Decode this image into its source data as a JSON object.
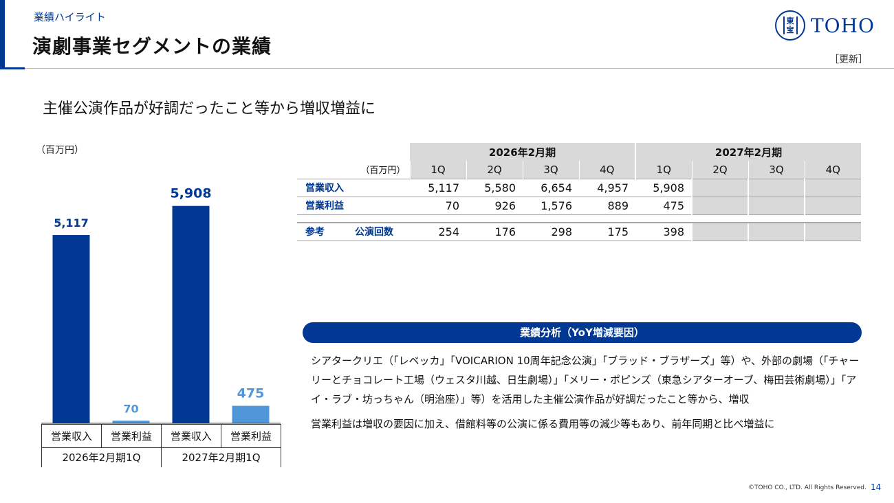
{
  "header": {
    "section_label": "業績ハイライト",
    "title": "演劇事業セグメントの業績",
    "logo_text": "TOHO",
    "logo_seal": [
      "東",
      "宝"
    ],
    "update_tag": "［更新］"
  },
  "headline": "主催公演作品が好調だったこと等から増収増益に",
  "chart_data": {
    "type": "bar",
    "unit_label": "（百万円）",
    "categories": [
      "営業収入",
      "営業利益",
      "営業収入",
      "営業利益"
    ],
    "groups": [
      "2026年2月期1Q",
      "2027年2月期1Q"
    ],
    "values": [
      5117,
      70,
      5908,
      475
    ],
    "value_labels": [
      "5,117",
      "70",
      "5,908",
      "475"
    ],
    "colors": [
      "#003893",
      "#4f97d9",
      "#003893",
      "#4f97d9"
    ],
    "ylim": [
      0,
      6500
    ]
  },
  "table": {
    "unit": "（百万円）",
    "years": [
      "2026年2月期",
      "2027年2月期"
    ],
    "quarters": [
      "1Q",
      "2Q",
      "3Q",
      "4Q",
      "1Q",
      "2Q",
      "3Q",
      "4Q"
    ],
    "rows": [
      {
        "label": "営業収入",
        "values": [
          "5,117",
          "5,580",
          "6,654",
          "4,957",
          "5,908",
          "",
          "",
          ""
        ]
      },
      {
        "label": "営業利益",
        "values": [
          "70",
          "926",
          "1,576",
          "889",
          "475",
          "",
          "",
          ""
        ]
      }
    ],
    "reference": {
      "label": "参考",
      "sublabel": "公演回数",
      "values": [
        "254",
        "176",
        "298",
        "175",
        "398",
        "",
        "",
        ""
      ]
    }
  },
  "analysis": {
    "title": "業績分析（YoY増減要因）",
    "paragraph1": "シアタークリエ（「レベッカ」「VOICARION 10周年記念公演」「ブラッド・ブラザーズ」等）や、外部の劇場（「チャーリーとチョコレート工場（ウェスタ川越、日生劇場）」「メリー・ポピンズ（東急シアターオーブ、梅田芸術劇場）」「アイ・ラブ・坊っちゃん（明治座）」等）を活用した主催公演作品が好調だったこと等から、増収",
    "paragraph2": "営業利益は増収の要因に加え、借館料等の公演に係る費用等の減少等もあり、前年同期と比べ増益に"
  },
  "footer": {
    "copyright": "©TOHO CO., LTD. All Rights Reserved.",
    "page": "14"
  }
}
